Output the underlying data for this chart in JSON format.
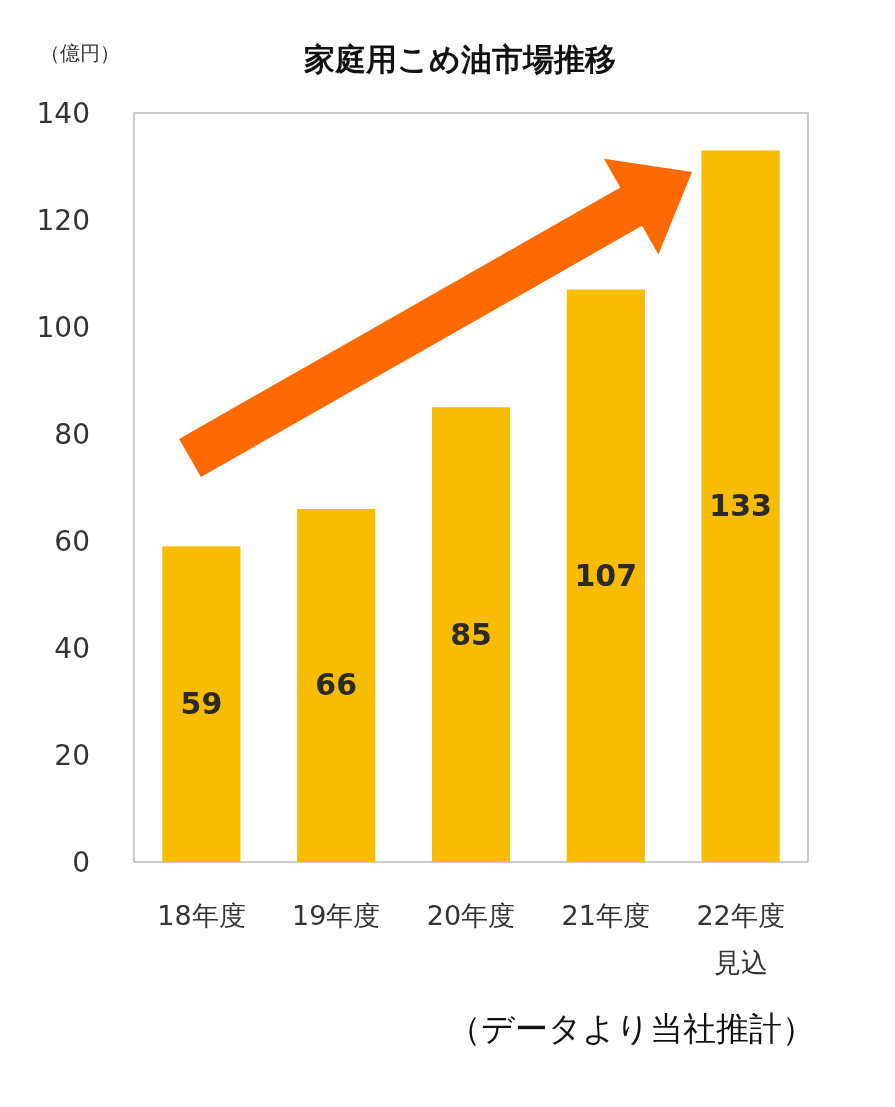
{
  "chart_data": {
    "type": "bar",
    "title": "家庭用こめ油市場推移",
    "ylabel": "（億円）",
    "categories": [
      "18年度",
      "19年度",
      "20年度",
      "21年度",
      "22年度見込"
    ],
    "values": [
      59,
      66,
      85,
      107,
      133
    ],
    "color": "#f8bc00",
    "ylim": [
      0,
      140
    ],
    "yticks": [
      0,
      20,
      40,
      60,
      80,
      100,
      120,
      140
    ],
    "grid": false,
    "data_labels": true,
    "annotations": [
      "（データより当社推計）"
    ]
  }
}
